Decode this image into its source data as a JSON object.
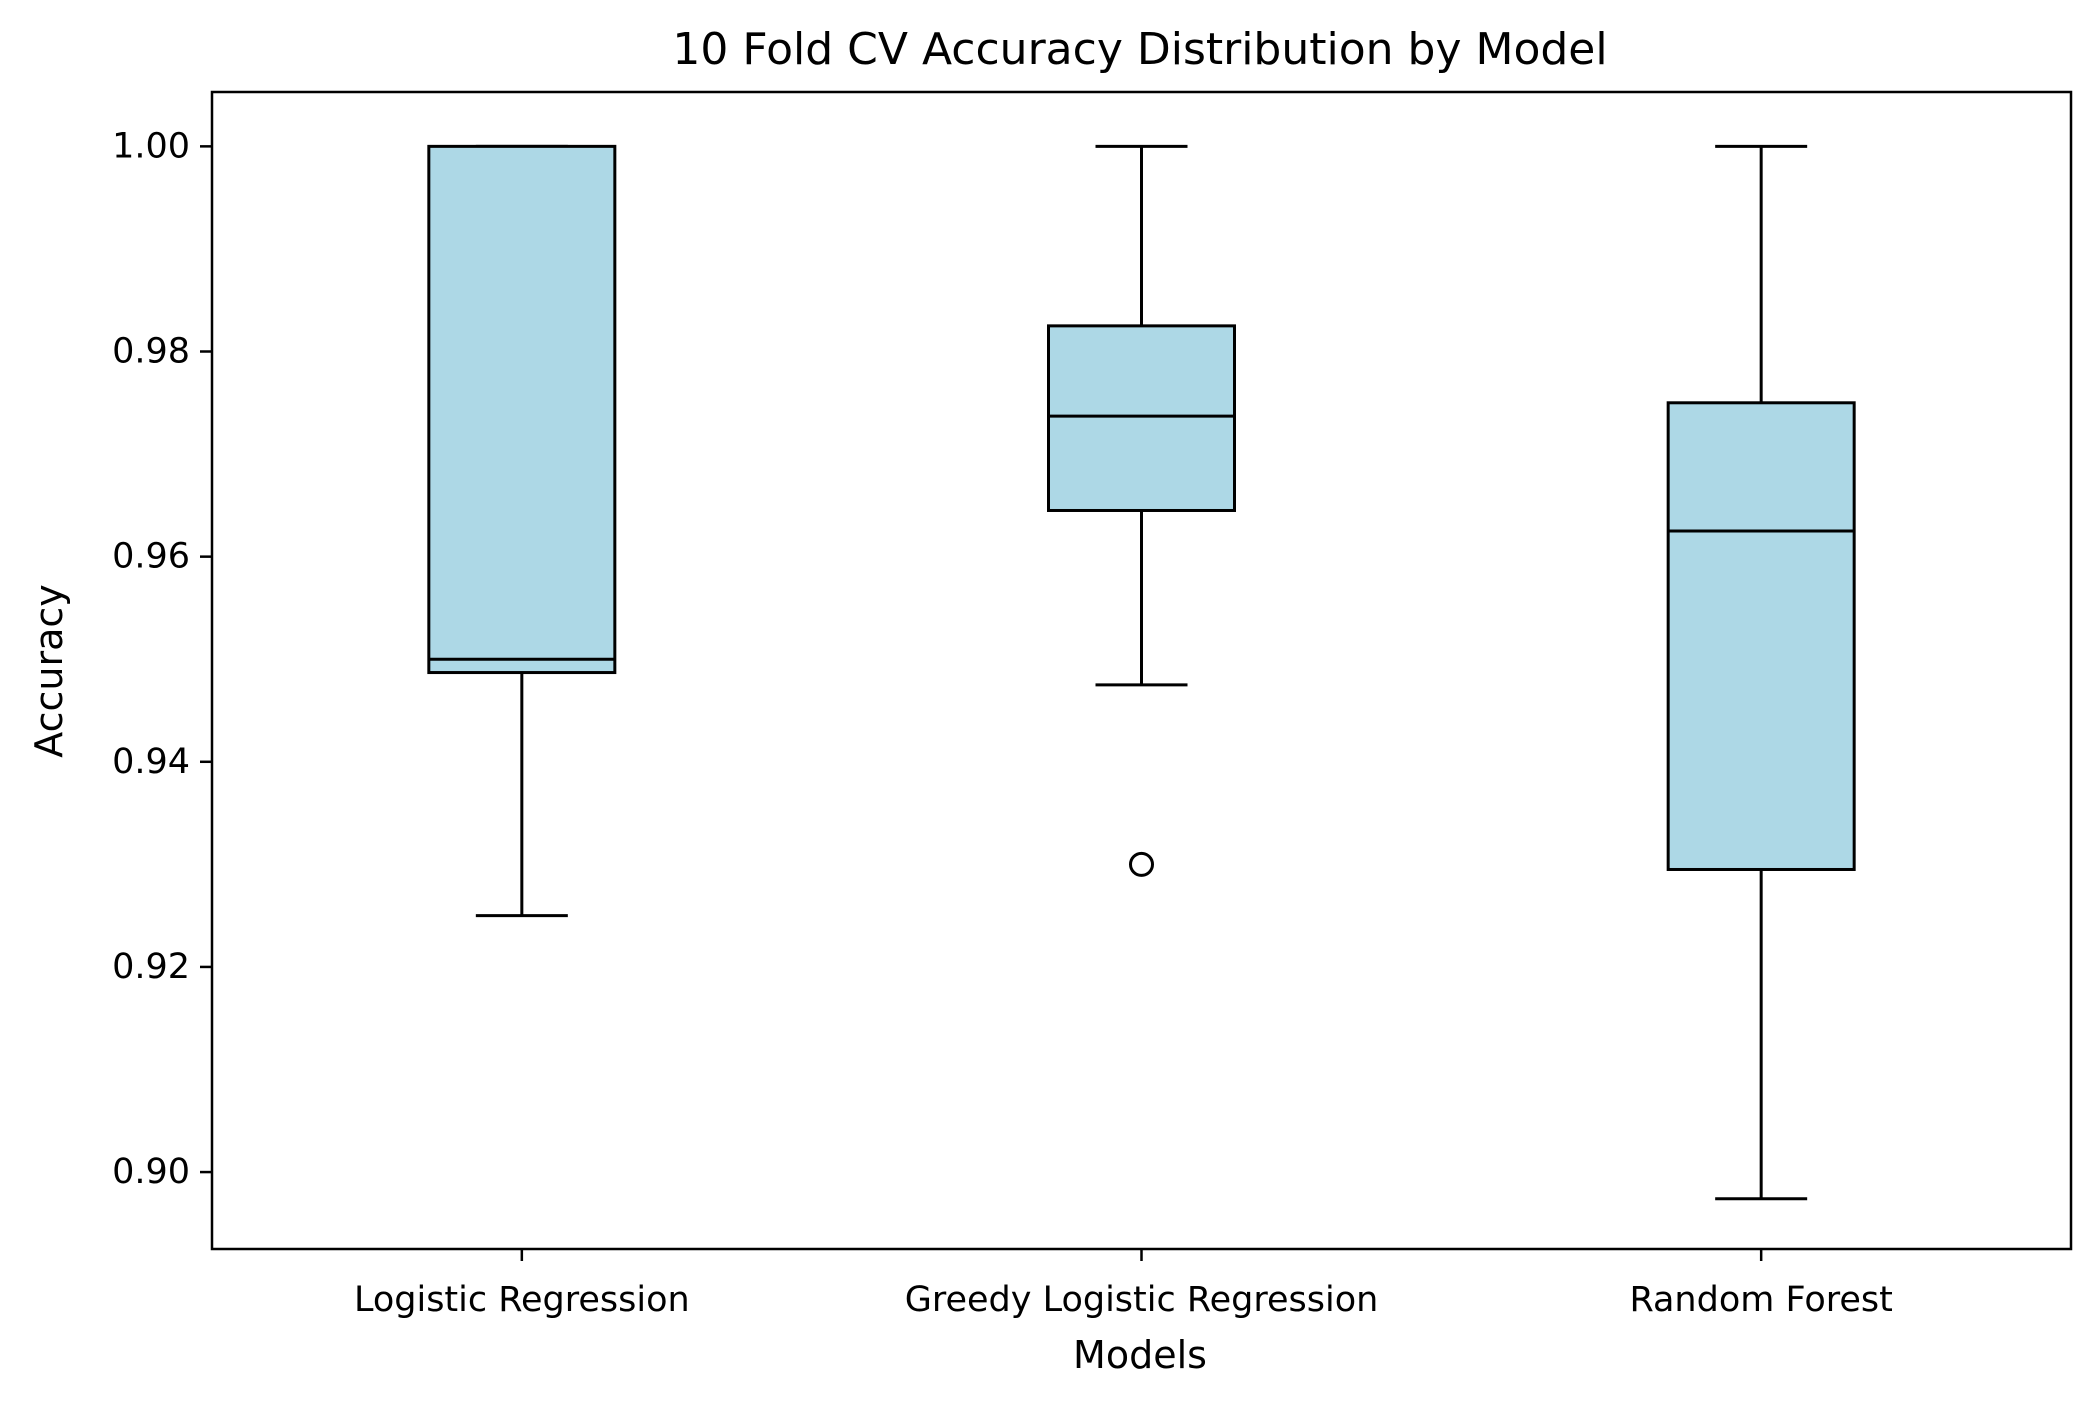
{
  "chart_data": {
    "type": "box",
    "title": "10 Fold CV Accuracy Distribution by Model",
    "xlabel": "Models",
    "ylabel": "Accuracy",
    "ylim": [
      0.8925,
      1.0053
    ],
    "yticks": [
      0.9,
      0.92,
      0.94,
      0.96,
      0.98,
      1.0
    ],
    "ytick_labels": [
      "0.90",
      "0.92",
      "0.94",
      "0.96",
      "0.98",
      "1.00"
    ],
    "grid": false,
    "legend": "none",
    "box_fill_color": "#add8e6",
    "line_color": "#000000",
    "categories": [
      "Logistic Regression",
      "Greedy Logistic Regression",
      "Random Forest"
    ],
    "boxes": [
      {
        "name": "Logistic Regression",
        "whisker_low": 0.925,
        "q1": 0.9487,
        "median": 0.95,
        "q3": 1.0,
        "whisker_high": 1.0,
        "outliers": []
      },
      {
        "name": "Greedy Logistic Regression",
        "whisker_low": 0.9475,
        "q1": 0.9645,
        "median": 0.9737,
        "q3": 0.9825,
        "whisker_high": 1.0,
        "outliers": [
          0.93
        ]
      },
      {
        "name": "Random Forest",
        "whisker_low": 0.8974,
        "q1": 0.9295,
        "median": 0.9625,
        "q3": 0.975,
        "whisker_high": 1.0,
        "outliers": []
      }
    ]
  }
}
